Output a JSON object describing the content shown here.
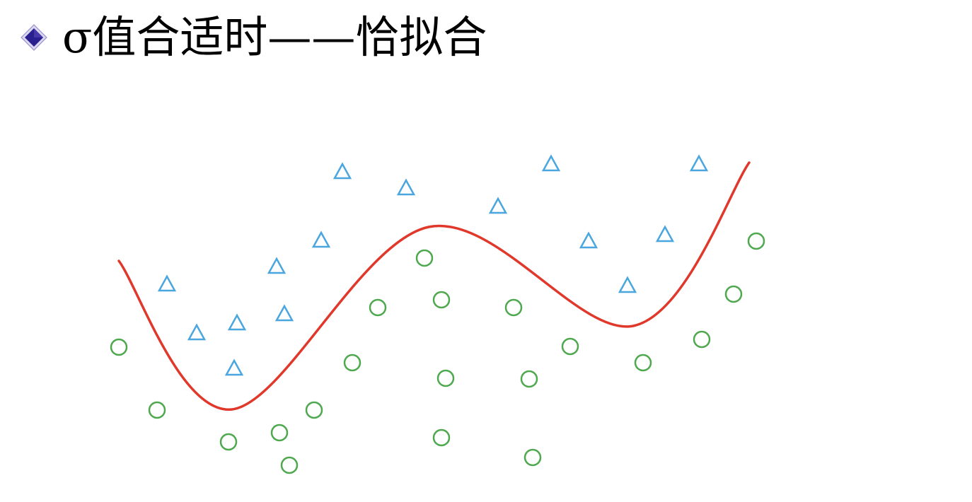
{
  "title": "σ值合适时——恰拟合",
  "bullet_icon": "diamond-bullet-icon",
  "colors": {
    "triangle": "#4aa6df",
    "circle": "#4ea84e",
    "boundary": "#e0382b",
    "bullet_fill": "#2a1f8f"
  },
  "chart_data": {
    "type": "scatter",
    "series": [
      {
        "marker": "triangle",
        "points": [
          [
            484,
            242
          ],
          [
            574,
            265
          ],
          [
            779,
            231
          ],
          [
            988,
            231
          ],
          [
            704,
            291
          ],
          [
            454,
            339
          ],
          [
            832,
            340
          ],
          [
            940,
            331
          ],
          [
            391,
            376
          ],
          [
            236,
            401
          ],
          [
            887,
            403
          ],
          [
            402,
            443
          ],
          [
            335,
            456
          ],
          [
            278,
            470
          ],
          [
            331,
            520
          ]
        ]
      },
      {
        "marker": "circle",
        "points": [
          [
            600,
            365
          ],
          [
            1069,
            341
          ],
          [
            1037,
            416
          ],
          [
            624,
            424
          ],
          [
            534,
            435
          ],
          [
            726,
            435
          ],
          [
            992,
            480
          ],
          [
            168,
            491
          ],
          [
            806,
            490
          ],
          [
            498,
            513
          ],
          [
            909,
            513
          ],
          [
            630,
            535
          ],
          [
            748,
            536
          ],
          [
            222,
            580
          ],
          [
            444,
            580
          ],
          [
            395,
            612
          ],
          [
            323,
            625
          ],
          [
            624,
            619
          ],
          [
            753,
            647
          ],
          [
            409,
            658
          ]
        ]
      }
    ],
    "boundary": [
      [
        168,
        369
      ],
      [
        328,
        579
      ],
      [
        606,
        321
      ],
      [
        895,
        461
      ],
      [
        1059,
        230
      ]
    ]
  }
}
